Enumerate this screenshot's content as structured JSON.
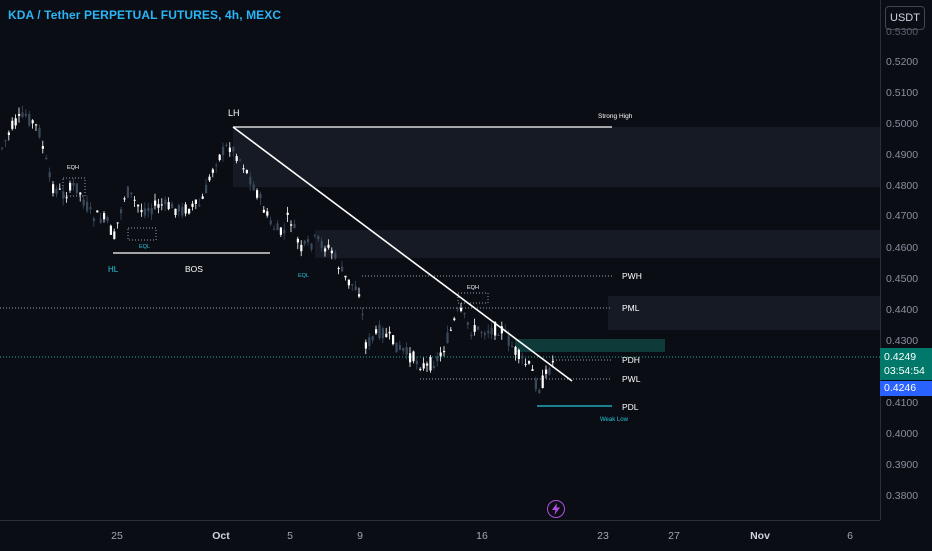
{
  "header": {
    "symbol_title": "KDA / Tether PERPETUAL FUTURES, 4h, MEXC"
  },
  "currency_button": "USDT",
  "price_axis": {
    "ticks": [
      "0.5200",
      "0.5100",
      "0.5000",
      "0.4900",
      "0.4800",
      "0.4700",
      "0.4600",
      "0.4500",
      "0.4400",
      "0.4300",
      "0.4100",
      "0.4000",
      "0.3900",
      "0.3800"
    ],
    "partial_top_tick": "0.5300",
    "last_price": "0.4249",
    "countdown": "03:54:54",
    "cursor_price": "0.4246"
  },
  "time_axis": {
    "labels": [
      {
        "text": "25",
        "bold": false
      },
      {
        "text": "Oct",
        "bold": true
      },
      {
        "text": "5",
        "bold": false
      },
      {
        "text": "9",
        "bold": false
      },
      {
        "text": "16",
        "bold": false
      },
      {
        "text": "23",
        "bold": false
      },
      {
        "text": "27",
        "bold": false
      },
      {
        "text": "Nov",
        "bold": true
      },
      {
        "text": "6",
        "bold": false
      }
    ]
  },
  "annotations": {
    "lh": "LH",
    "strong_high": "Strong High",
    "eqh_1": "EQH",
    "eql_1": "EQL",
    "hl": "HL",
    "bos": "BOS",
    "eql_2": "EQL",
    "eqh_2": "EQH",
    "pwh": "PWH",
    "pml": "PML",
    "pdh": "PDH",
    "pwl": "PWL",
    "pdl": "PDL",
    "weak_low": "Weak Low"
  },
  "colors": {
    "background": "#0b0d14",
    "bull_candle": "#ffffff",
    "bear_candle": "#3a4a5c",
    "accent": "#29b6f6",
    "last_price_bg": "#00796b",
    "cursor_price_bg": "#2962ff",
    "lightning": "#b04de0"
  },
  "icons": {
    "alert": "lightning-icon"
  }
}
